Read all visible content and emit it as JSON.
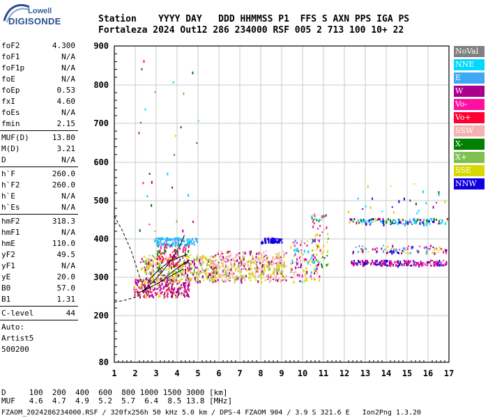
{
  "brand": {
    "top": "Lowell",
    "name": "DIGISONDE"
  },
  "header": {
    "labels": "Station    YYYY DAY   DDD HHMMSS P1  FFS S AXN PPS IGA PS",
    "values": "Fortaleza 2024 Out12 286 234000 RSF 005 2 713 100 10+ 22"
  },
  "parameters": [
    {
      "name": "foF2",
      "value": "4.300"
    },
    {
      "name": "foF1",
      "value": "N/A"
    },
    {
      "name": "foF1p",
      "value": "N/A"
    },
    {
      "name": "foE",
      "value": "N/A"
    },
    {
      "name": "foEp",
      "value": "0.53"
    },
    {
      "name": "fxI",
      "value": "4.60"
    },
    {
      "name": "foEs",
      "value": "N/A"
    },
    {
      "name": "fmin",
      "value": "2.15"
    },
    {
      "sep": true
    },
    {
      "name": "MUF(D)",
      "value": "13.80"
    },
    {
      "name": "M(D)",
      "value": "3.21"
    },
    {
      "name": "D",
      "value": "N/A"
    },
    {
      "sep": true
    },
    {
      "name": "h`F",
      "value": "260.0"
    },
    {
      "name": "h`F2",
      "value": "260.0"
    },
    {
      "name": "h`E",
      "value": "N/A"
    },
    {
      "name": "h`Es",
      "value": "N/A"
    },
    {
      "sep": true
    },
    {
      "name": "hmF2",
      "value": "318.3"
    },
    {
      "name": "hmF1",
      "value": "N/A"
    },
    {
      "name": "hmE",
      "value": "110.0"
    },
    {
      "name": "yF2",
      "value": "49.5"
    },
    {
      "name": "yF1",
      "value": "N/A"
    },
    {
      "name": "yE",
      "value": "20.0"
    },
    {
      "name": "B0",
      "value": "57.0"
    },
    {
      "name": "B1",
      "value": "1.31"
    },
    {
      "sep": true
    },
    {
      "name": "C-level",
      "value": "44"
    },
    {
      "sep": true
    },
    {
      "name": "Auto:",
      "value": ""
    },
    {
      "name": "Artist5",
      "value": ""
    },
    {
      "name": "500200",
      "value": ""
    }
  ],
  "legend": [
    {
      "label": "NoVal",
      "color": "#808080"
    },
    {
      "label": "NNE",
      "color": "#00d8ff"
    },
    {
      "label": "E",
      "color": "#3ea8f5"
    },
    {
      "label": "W",
      "color": "#a8008c"
    },
    {
      "label": "Vo-",
      "color": "#ff10a0"
    },
    {
      "label": "Vo+",
      "color": "#ff0030"
    },
    {
      "label": "SSW",
      "color": "#f5b0b0"
    },
    {
      "label": "X-",
      "color": "#008000"
    },
    {
      "label": "X+",
      "color": "#80c050"
    },
    {
      "label": "SSE",
      "color": "#d8d800"
    },
    {
      "label": "NNW",
      "color": "#1000e0"
    }
  ],
  "chart_data": {
    "type": "scatter",
    "xlim": [
      1,
      17
    ],
    "ylim": [
      80,
      900
    ],
    "x_ticks": [
      "1",
      "2",
      "3",
      "4",
      "5",
      "6",
      "7",
      "8",
      "9",
      "10",
      "11",
      "12",
      "13",
      "14",
      "15",
      "16",
      "17"
    ],
    "y_ticks": [
      "80",
      "200",
      "300",
      "400",
      "500",
      "600",
      "700",
      "800",
      "900"
    ],
    "grid": true
  },
  "footer": {
    "line1": "D     100  200  400  600  800 1000 1500 3000 [km]",
    "line2": "MUF   4.6  4.7  4.9  5.2  5.7  6.4  8.5 13.8 [MHz]",
    "line3": "FZAOM_2024286234000.RSF / 320fx256h 50 kHz 5.0 km / DPS-4 FZAOM 904 / 3.9 S 321.6 E   Ion2Png 1.3.20"
  }
}
